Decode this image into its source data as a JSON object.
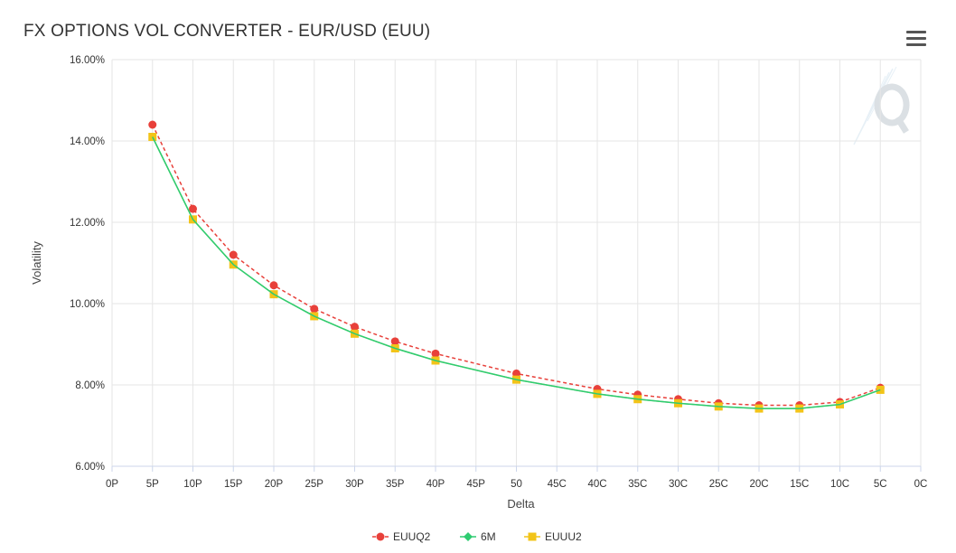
{
  "header": {
    "title": "FX OPTIONS VOL CONVERTER - EUR/USD (EUU)",
    "menu_icon": "hamburger-menu-icon",
    "watermark_icon": "q-logo-watermark-icon"
  },
  "chart_data": {
    "type": "line",
    "title": "FX OPTIONS VOL CONVERTER - EUR/USD (EUU)",
    "xlabel": "Delta",
    "ylabel": "Volatility",
    "categories": [
      "0P",
      "5P",
      "10P",
      "15P",
      "20P",
      "25P",
      "30P",
      "35P",
      "40P",
      "45P",
      "50",
      "45C",
      "40C",
      "35C",
      "30C",
      "25C",
      "20C",
      "15C",
      "10C",
      "5C",
      "0C"
    ],
    "ylim": [
      6,
      16
    ],
    "yticks": [
      "6.00%",
      "8.00%",
      "10.00%",
      "12.00%",
      "14.00%",
      "16.00%"
    ],
    "grid": true,
    "legend_position": "bottom-center",
    "series": [
      {
        "name": "EUUQ2",
        "color": "#e8403a",
        "line_style": "dashed",
        "marker": "circle",
        "points": [
          {
            "x": "5P",
            "y": 14.4
          },
          {
            "x": "10P",
            "y": 12.33
          },
          {
            "x": "15P",
            "y": 11.2
          },
          {
            "x": "20P",
            "y": 10.45
          },
          {
            "x": "25P",
            "y": 9.87
          },
          {
            "x": "30P",
            "y": 9.43
          },
          {
            "x": "35P",
            "y": 9.07
          },
          {
            "x": "40P",
            "y": 8.77
          },
          {
            "x": "50",
            "y": 8.28
          },
          {
            "x": "40C",
            "y": 7.9
          },
          {
            "x": "35C",
            "y": 7.76
          },
          {
            "x": "30C",
            "y": 7.65
          },
          {
            "x": "25C",
            "y": 7.55
          },
          {
            "x": "20C",
            "y": 7.5
          },
          {
            "x": "15C",
            "y": 7.5
          },
          {
            "x": "10C",
            "y": 7.58
          },
          {
            "x": "5C",
            "y": 7.93
          }
        ]
      },
      {
        "name": "6M",
        "color": "#2ecc71",
        "line_style": "solid",
        "marker": "diamond",
        "points": [
          {
            "x": "5P",
            "y": 14.1
          },
          {
            "x": "10P",
            "y": 12.07
          },
          {
            "x": "15P",
            "y": 10.96
          },
          {
            "x": "20P",
            "y": 10.23
          },
          {
            "x": "25P",
            "y": 9.69
          },
          {
            "x": "30P",
            "y": 9.26
          },
          {
            "x": "35P",
            "y": 8.9
          },
          {
            "x": "40P",
            "y": 8.6
          },
          {
            "x": "50",
            "y": 8.13
          },
          {
            "x": "40C",
            "y": 7.78
          },
          {
            "x": "35C",
            "y": 7.65
          },
          {
            "x": "30C",
            "y": 7.55
          },
          {
            "x": "25C",
            "y": 7.47
          },
          {
            "x": "20C",
            "y": 7.42
          },
          {
            "x": "15C",
            "y": 7.42
          },
          {
            "x": "10C",
            "y": 7.52
          },
          {
            "x": "5C",
            "y": 7.88
          }
        ]
      },
      {
        "name": "EUUU2",
        "color": "#f2c418",
        "line_style": "solid",
        "marker": "square",
        "points": [
          {
            "x": "5P",
            "y": 14.1
          },
          {
            "x": "10P",
            "y": 12.07
          },
          {
            "x": "15P",
            "y": 10.96
          },
          {
            "x": "20P",
            "y": 10.23
          },
          {
            "x": "25P",
            "y": 9.69
          },
          {
            "x": "30P",
            "y": 9.26
          },
          {
            "x": "35P",
            "y": 8.9
          },
          {
            "x": "40P",
            "y": 8.6
          },
          {
            "x": "50",
            "y": 8.13
          },
          {
            "x": "40C",
            "y": 7.78
          },
          {
            "x": "35C",
            "y": 7.65
          },
          {
            "x": "30C",
            "y": 7.55
          },
          {
            "x": "25C",
            "y": 7.47
          },
          {
            "x": "20C",
            "y": 7.42
          },
          {
            "x": "15C",
            "y": 7.42
          },
          {
            "x": "10C",
            "y": 7.52
          },
          {
            "x": "5C",
            "y": 7.88
          }
        ]
      }
    ]
  }
}
